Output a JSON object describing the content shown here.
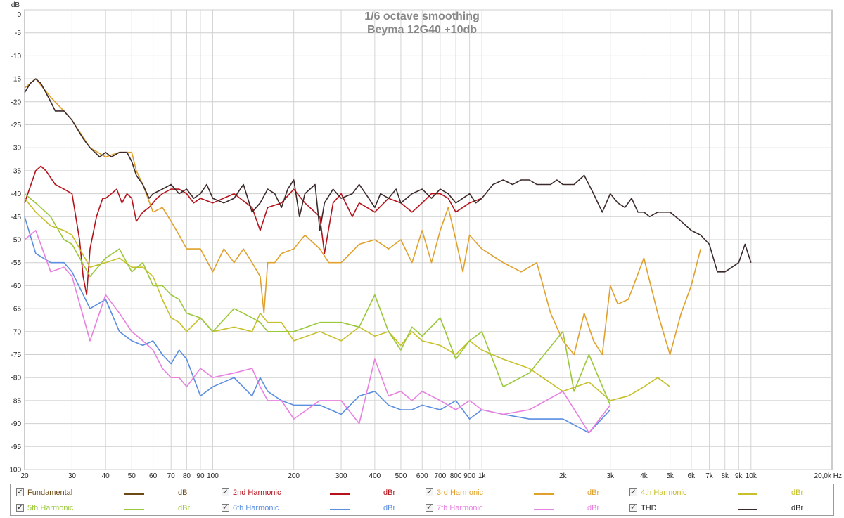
{
  "chart_data": {
    "type": "line",
    "title": [
      "1/6 octave smoothing",
      "Beyma 12G40 +10db"
    ],
    "ylabel": "dB",
    "xlabel": "",
    "x_unit": "Hz",
    "x_scale": "log",
    "xlim": [
      20,
      20000
    ],
    "ylim": [
      -100,
      0
    ],
    "grid": true,
    "x_ticks": [
      {
        "v": 20,
        "label": "20"
      },
      {
        "v": 30,
        "label": "30"
      },
      {
        "v": 40,
        "label": "40"
      },
      {
        "v": 50,
        "label": "50"
      },
      {
        "v": 60,
        "label": "60"
      },
      {
        "v": 70,
        "label": "70"
      },
      {
        "v": 80,
        "label": "80"
      },
      {
        "v": 90,
        "label": "90"
      },
      {
        "v": 100,
        "label": "100"
      },
      {
        "v": 200,
        "label": "200"
      },
      {
        "v": 300,
        "label": "300"
      },
      {
        "v": 400,
        "label": "400"
      },
      {
        "v": 500,
        "label": "500"
      },
      {
        "v": 600,
        "label": "600"
      },
      {
        "v": 700,
        "label": "700"
      },
      {
        "v": 800,
        "label": "800"
      },
      {
        "v": 900,
        "label": "900"
      },
      {
        "v": 1000,
        "label": "1k"
      },
      {
        "v": 2000,
        "label": "2k"
      },
      {
        "v": 3000,
        "label": "3k"
      },
      {
        "v": 4000,
        "label": "4k"
      },
      {
        "v": 5000,
        "label": "5k"
      },
      {
        "v": 6000,
        "label": "6k"
      },
      {
        "v": 7000,
        "label": "7k"
      },
      {
        "v": 8000,
        "label": "8k"
      },
      {
        "v": 9000,
        "label": "9k"
      },
      {
        "v": 10000,
        "label": "10k"
      },
      {
        "v": 20000,
        "label": "20,0k Hz"
      }
    ],
    "y_ticks": [
      {
        "v": 0,
        "label": "0"
      },
      {
        "v": -5,
        "label": "-5"
      },
      {
        "v": -10,
        "label": "-10"
      },
      {
        "v": -15,
        "label": "-15"
      },
      {
        "v": -20,
        "label": "-20"
      },
      {
        "v": -25,
        "label": "-25"
      },
      {
        "v": -30,
        "label": "-30"
      },
      {
        "v": -35,
        "label": "-35"
      },
      {
        "v": -40,
        "label": "-40"
      },
      {
        "v": -45,
        "label": "-45"
      },
      {
        "v": -50,
        "label": "-50"
      },
      {
        "v": -55,
        "label": "-55"
      },
      {
        "v": -60,
        "label": "-60"
      },
      {
        "v": -65,
        "label": "-65"
      },
      {
        "v": -70,
        "label": "-70"
      },
      {
        "v": -75,
        "label": "-75"
      },
      {
        "v": -80,
        "label": "-80"
      },
      {
        "v": -85,
        "label": "-85"
      },
      {
        "v": -90,
        "label": "-90"
      },
      {
        "v": -95,
        "label": "-95"
      },
      {
        "v": -100,
        "label": "-100"
      }
    ],
    "series": [
      {
        "name": "Fundamental",
        "unit": "dB",
        "color": "#6b4a16",
        "checked": true,
        "x": [],
        "y": []
      },
      {
        "name": "2nd Harmonic",
        "unit": "dBr",
        "color": "#b5121b",
        "checked": true,
        "x": [
          20,
          22,
          23,
          24,
          26,
          28,
          30,
          32,
          33,
          34,
          35,
          37,
          39,
          40,
          42,
          44,
          46,
          48,
          50,
          52,
          55,
          58,
          60,
          62,
          65,
          70,
          75,
          80,
          85,
          90,
          100,
          120,
          140,
          150,
          160,
          180,
          200,
          220,
          250,
          260,
          280,
          300,
          330,
          350,
          400,
          450,
          500,
          550,
          600,
          650,
          700,
          750,
          800,
          900,
          1000
        ],
        "y": [
          -42,
          -35,
          -34,
          -35,
          -38,
          -39,
          -40,
          -50,
          -58,
          -62,
          -52,
          -45,
          -41,
          -41,
          -40,
          -39,
          -42,
          -40,
          -41,
          -46,
          -44,
          -43,
          -42,
          -41,
          -40,
          -39,
          -39,
          -40,
          -42,
          -41,
          -42,
          -40,
          -43,
          -48,
          -43,
          -42,
          -39,
          -42,
          -45,
          -53,
          -42,
          -40,
          -45,
          -42,
          -44,
          -41,
          -42,
          -44,
          -42,
          -40,
          -40,
          -41,
          -44,
          -42,
          -41
        ]
      },
      {
        "name": "3rd Harmonic",
        "unit": "dBr",
        "color": "#e0a02c",
        "checked": true,
        "x": [
          20,
          22,
          25,
          28,
          30,
          35,
          40,
          45,
          50,
          52,
          55,
          60,
          65,
          70,
          75,
          80,
          90,
          100,
          110,
          120,
          130,
          140,
          150,
          155,
          160,
          170,
          180,
          200,
          220,
          250,
          270,
          300,
          350,
          400,
          450,
          500,
          550,
          600,
          650,
          700,
          750,
          800,
          850,
          900,
          1000,
          1200,
          1400,
          1600,
          1800,
          2000,
          2200,
          2400,
          2600,
          2800,
          3000,
          3200,
          3500,
          4000,
          4500,
          5000,
          5500,
          6000,
          6500
        ],
        "y": [
          -17,
          -15,
          -19,
          -22,
          -24,
          -30,
          -32,
          -31,
          -31,
          -35,
          -38,
          -44,
          -43,
          -46,
          -49,
          -52,
          -52,
          -57,
          -52,
          -55,
          -52,
          -55,
          -58,
          -66,
          -55,
          -55,
          -53,
          -52,
          -49,
          -52,
          -55,
          -55,
          -51,
          -50,
          -52,
          -50,
          -55,
          -48,
          -55,
          -48,
          -43,
          -50,
          -57,
          -49,
          -52,
          -55,
          -57,
          -55,
          -66,
          -72,
          -75,
          -66,
          -72,
          -75,
          -60,
          -64,
          -63,
          -54,
          -66,
          -75,
          -66,
          -60,
          -52
        ]
      },
      {
        "name": "4th Harmonic",
        "unit": "dBr",
        "color": "#c8c02a",
        "checked": true,
        "x": [
          20,
          22,
          25,
          28,
          30,
          35,
          40,
          45,
          50,
          55,
          60,
          65,
          70,
          75,
          80,
          90,
          100,
          120,
          140,
          150,
          160,
          180,
          200,
          250,
          300,
          350,
          400,
          450,
          500,
          550,
          600,
          700,
          800,
          900,
          1000,
          1200,
          1500,
          2000,
          2500,
          3000,
          3500,
          4000,
          4500,
          5000
        ],
        "y": [
          -41,
          -44,
          -47,
          -48,
          -49,
          -56,
          -55,
          -54,
          -56,
          -56,
          -58,
          -63,
          -67,
          -68,
          -70,
          -67,
          -70,
          -69,
          -70,
          -66,
          -68,
          -68,
          -72,
          -70,
          -72,
          -69,
          -71,
          -70,
          -73,
          -70,
          -72,
          -73,
          -75,
          -72,
          -74,
          -76,
          -78,
          -83,
          -81,
          -85,
          -84,
          -82,
          -80,
          -82
        ]
      },
      {
        "name": "5th Harmonic",
        "unit": "dBr",
        "color": "#9ac83a",
        "checked": true,
        "x": [
          20,
          22,
          25,
          28,
          30,
          35,
          40,
          45,
          50,
          55,
          60,
          65,
          70,
          75,
          80,
          90,
          100,
          120,
          140,
          150,
          160,
          180,
          200,
          250,
          300,
          350,
          400,
          450,
          500,
          550,
          600,
          700,
          800,
          900,
          1000,
          1200,
          1500,
          2000,
          2200,
          2500,
          3000
        ],
        "y": [
          -40,
          -42,
          -45,
          -50,
          -51,
          -58,
          -54,
          -52,
          -57,
          -55,
          -60,
          -60,
          -62,
          -63,
          -66,
          -67,
          -70,
          -65,
          -67,
          -68,
          -70,
          -70,
          -70,
          -68,
          -68,
          -69,
          -62,
          -70,
          -74,
          -69,
          -71,
          -67,
          -76,
          -72,
          -70,
          -82,
          -79,
          -70,
          -83,
          -75,
          -86
        ]
      },
      {
        "name": "6th Harmonic",
        "unit": "dBr",
        "color": "#5a8ee0",
        "checked": true,
        "x": [
          20,
          22,
          25,
          28,
          30,
          35,
          40,
          45,
          50,
          55,
          60,
          65,
          70,
          75,
          80,
          90,
          100,
          120,
          140,
          150,
          160,
          180,
          200,
          250,
          300,
          350,
          400,
          450,
          500,
          550,
          600,
          700,
          800,
          900,
          1000,
          1200,
          1500,
          2000,
          2500,
          3000
        ],
        "y": [
          -45,
          -53,
          -55,
          -55,
          -57,
          -65,
          -63,
          -70,
          -72,
          -73,
          -72,
          -75,
          -77,
          -74,
          -76,
          -84,
          -82,
          -80,
          -84,
          -80,
          -83,
          -85,
          -86,
          -86,
          -88,
          -84,
          -83,
          -86,
          -87,
          -87,
          -86,
          -87,
          -85,
          -89,
          -87,
          -88,
          -89,
          -89,
          -92,
          -87
        ]
      },
      {
        "name": "7th Harmonic",
        "unit": "dBr",
        "color": "#e880e0",
        "checked": true,
        "x": [
          20,
          22,
          25,
          28,
          30,
          35,
          40,
          45,
          50,
          55,
          60,
          65,
          70,
          75,
          80,
          90,
          100,
          120,
          140,
          150,
          160,
          180,
          200,
          250,
          300,
          350,
          400,
          450,
          500,
          550,
          600,
          700,
          800,
          900,
          1000,
          1200,
          1500,
          2000,
          2500,
          3000
        ],
        "y": [
          -50,
          -48,
          -57,
          -56,
          -58,
          -72,
          -62,
          -66,
          -70,
          -72,
          -74,
          -78,
          -80,
          -80,
          -82,
          -78,
          -80,
          -79,
          -78,
          -82,
          -85,
          -85,
          -89,
          -85,
          -85,
          -90,
          -76,
          -84,
          -83,
          -85,
          -83,
          -85,
          -87,
          -85,
          -87,
          -88,
          -87,
          -83,
          -92,
          -86
        ]
      },
      {
        "name": "THD",
        "unit": "dBr",
        "color": "#3c2a2a",
        "checked": true,
        "x": [
          20,
          21,
          22,
          23,
          24,
          25,
          26,
          28,
          30,
          33,
          35,
          38,
          40,
          42,
          45,
          48,
          50,
          52,
          55,
          58,
          60,
          65,
          70,
          75,
          80,
          85,
          90,
          95,
          100,
          110,
          120,
          130,
          140,
          150,
          160,
          170,
          180,
          190,
          200,
          210,
          220,
          240,
          250,
          260,
          280,
          300,
          330,
          350,
          380,
          400,
          420,
          450,
          480,
          500,
          550,
          600,
          650,
          700,
          750,
          800,
          850,
          900,
          950,
          1000,
          1100,
          1200,
          1300,
          1400,
          1500,
          1600,
          1700,
          1800,
          1900,
          2000,
          2200,
          2400,
          2600,
          2800,
          3000,
          3200,
          3400,
          3600,
          3800,
          4000,
          4200,
          4500,
          5000,
          5500,
          6000,
          6500,
          7000,
          7500,
          8000,
          8500,
          9000,
          9500,
          10000
        ],
        "y": [
          -18,
          -16,
          -15,
          -16,
          -18,
          -20,
          -22,
          -22,
          -24,
          -28,
          -30,
          -32,
          -31,
          -32,
          -31,
          -31,
          -33,
          -36,
          -38,
          -41,
          -40,
          -39,
          -38,
          -40,
          -39,
          -41,
          -40,
          -38,
          -41,
          -42,
          -41,
          -38,
          -44,
          -42,
          -39,
          -40,
          -43,
          -39,
          -37,
          -45,
          -40,
          -38,
          -48,
          -42,
          -39,
          -41,
          -40,
          -38,
          -41,
          -43,
          -40,
          -41,
          -39,
          -42,
          -40,
          -39,
          -41,
          -39,
          -40,
          -42,
          -41,
          -40,
          -42,
          -41,
          -38,
          -37,
          -38,
          -37,
          -37,
          -38,
          -38,
          -38,
          -37,
          -38,
          -38,
          -36,
          -40,
          -44,
          -40,
          -42,
          -43,
          -41,
          -44,
          -44,
          -45,
          -44,
          -44,
          -46,
          -48,
          -49,
          -51,
          -57,
          -57,
          -56,
          -55,
          -51,
          -55
        ]
      }
    ]
  }
}
